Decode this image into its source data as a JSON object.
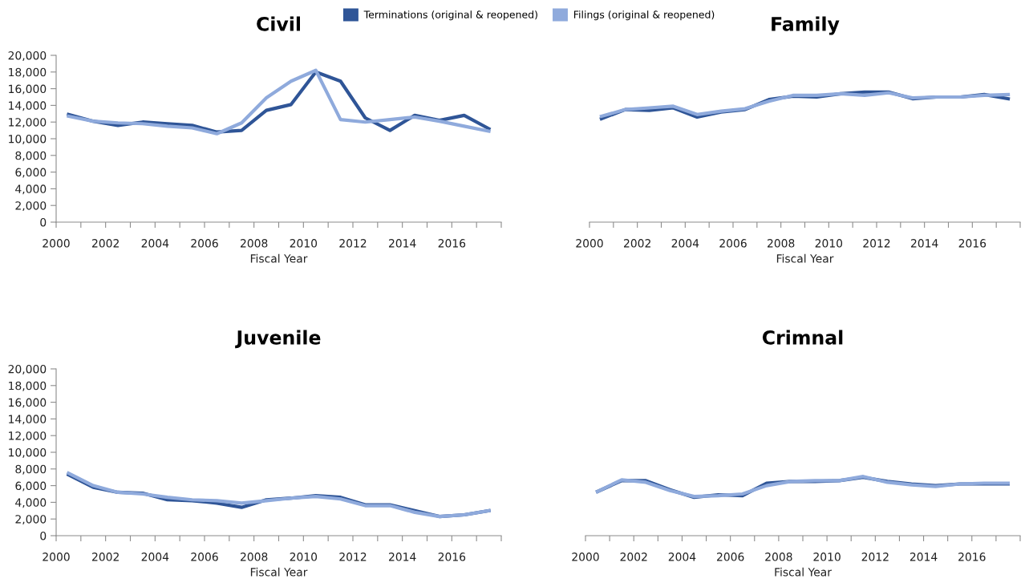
{
  "chart_data": [
    {
      "type": "line",
      "title": "Civil",
      "xlabel": "Fiscal Year",
      "legend": "top",
      "grid": false,
      "x": [
        2000.5,
        2001.5,
        2002.5,
        2003.5,
        2004.5,
        2005.5,
        2006.5,
        2007.5,
        2008.5,
        2009.5,
        2010.5,
        2011.5,
        2012.5,
        2013.5,
        2014.5,
        2015.5,
        2016.5,
        2017.5
      ],
      "xlim": [
        2000,
        2018
      ],
      "xticks": [
        2000,
        {
          "value": 2001,
          "label": null
        },
        2002,
        {
          "value": 2003,
          "label": null
        },
        2004,
        {
          "value": 2005,
          "label": null
        },
        2006,
        {
          "value": 2007,
          "label": null
        },
        2008,
        {
          "value": 2009,
          "label": null
        },
        2010,
        {
          "value": 2011,
          "label": null
        },
        2012,
        {
          "value": 2013,
          "label": null
        },
        2014,
        {
          "value": 2015,
          "label": null
        },
        2016,
        {
          "value": 2017,
          "label": null
        },
        {
          "value": 2018,
          "label": null
        }
      ],
      "ylim": [
        0,
        20000
      ],
      "yticks": [
        0,
        {
          "value": 2000,
          "label": "2,000"
        },
        {
          "value": 4000,
          "label": "4,000"
        },
        {
          "value": 6000,
          "label": "6,000"
        },
        {
          "value": 8000,
          "label": "8,000"
        },
        {
          "value": 10000,
          "label": "10,000"
        },
        {
          "value": 12000,
          "label": "12,000"
        },
        {
          "value": 14000,
          "label": "14,000"
        },
        {
          "value": 16000,
          "label": "16,000"
        },
        {
          "value": 18000,
          "label": "18,000"
        },
        {
          "value": 20000,
          "label": "20,000"
        }
      ],
      "series": [
        {
          "name": "Terminations (original & reopened)",
          "color": "#2f5597",
          "values": [
            12900,
            12100,
            11600,
            12000,
            11800,
            11600,
            10800,
            11000,
            13400,
            14100,
            18000,
            16900,
            12500,
            11000,
            12800,
            12200,
            12800,
            11200
          ]
        },
        {
          "name": "Filings (original & reopened)",
          "color": "#8faadc",
          "values": [
            12700,
            12100,
            11900,
            11800,
            11500,
            11300,
            10600,
            11900,
            14900,
            16900,
            18200,
            12300,
            12000,
            12300,
            12600,
            12100,
            11500,
            10900
          ]
        }
      ]
    },
    {
      "type": "line",
      "title": "Family",
      "xlabel": "Fiscal Year",
      "grid": false,
      "tick_labels": "x",
      "x": [
        2000.5,
        2001.5,
        2002.5,
        2003.5,
        2004.5,
        2005.5,
        2006.5,
        2007.5,
        2008.5,
        2009.5,
        2010.5,
        2011.5,
        2012.5,
        2013.5,
        2014.5,
        2015.5,
        2016.5,
        2017.5
      ],
      "xlim": [
        2000,
        2018
      ],
      "xticks": [
        2000,
        {
          "value": 2001,
          "label": null
        },
        2002,
        {
          "value": 2003,
          "label": null
        },
        2004,
        {
          "value": 2005,
          "label": null
        },
        2006,
        {
          "value": 2007,
          "label": null
        },
        2008,
        {
          "value": 2009,
          "label": null
        },
        2010,
        {
          "value": 2011,
          "label": null
        },
        2012,
        {
          "value": 2013,
          "label": null
        },
        2014,
        {
          "value": 2015,
          "label": null
        },
        2016,
        {
          "value": 2017,
          "label": null
        },
        {
          "value": 2018,
          "label": null
        }
      ],
      "ylim": [
        0,
        20000
      ],
      "series": [
        {
          "color": "#2f5597",
          "values": [
            12400,
            13500,
            13400,
            13700,
            12600,
            13200,
            13500,
            14700,
            15100,
            15000,
            15400,
            15600,
            15600,
            14800,
            15000,
            15000,
            15300,
            14800
          ]
        },
        {
          "color": "#8faadc",
          "values": [
            12700,
            13500,
            13700,
            13900,
            12900,
            13300,
            13600,
            14500,
            15200,
            15200,
            15400,
            15200,
            15500,
            14900,
            15000,
            15000,
            15200,
            15300
          ]
        }
      ]
    },
    {
      "type": "line",
      "title": "Juvenile",
      "xlabel": "Fiscal Year",
      "grid": false,
      "x": [
        2000.5,
        2001.5,
        2002.5,
        2003.5,
        2004.5,
        2005.5,
        2006.5,
        2007.5,
        2008.5,
        2009.5,
        2010.5,
        2011.5,
        2012.5,
        2013.5,
        2014.5,
        2015.5,
        2016.5,
        2017.5
      ],
      "xlim": [
        2000,
        2018
      ],
      "xticks": [
        2000,
        {
          "value": 2001,
          "label": null
        },
        2002,
        {
          "value": 2003,
          "label": null
        },
        2004,
        {
          "value": 2005,
          "label": null
        },
        2006,
        {
          "value": 2007,
          "label": null
        },
        2008,
        {
          "value": 2009,
          "label": null
        },
        2010,
        {
          "value": 2011,
          "label": null
        },
        2012,
        {
          "value": 2013,
          "label": null
        },
        2014,
        {
          "value": 2015,
          "label": null
        },
        2016,
        {
          "value": 2017,
          "label": null
        },
        {
          "value": 2018,
          "label": null
        }
      ],
      "ylim": [
        0,
        20000
      ],
      "yticks": [
        0,
        {
          "value": 2000,
          "label": "2,000"
        },
        {
          "value": 4000,
          "label": "4,000"
        },
        {
          "value": 6000,
          "label": "6,000"
        },
        {
          "value": 8000,
          "label": "8,000"
        },
        {
          "value": 10000,
          "label": "10,000"
        },
        {
          "value": 12000,
          "label": "12,000"
        },
        {
          "value": 14000,
          "label": "14,000"
        },
        {
          "value": 16000,
          "label": "16,000"
        },
        {
          "value": 18000,
          "label": "18,000"
        },
        {
          "value": 20000,
          "label": "20,000"
        }
      ],
      "series": [
        {
          "color": "#2f5597",
          "values": [
            7300,
            5800,
            5200,
            5100,
            4300,
            4200,
            3900,
            3400,
            4300,
            4500,
            4800,
            4600,
            3700,
            3700,
            3000,
            2300,
            2500,
            3000
          ]
        },
        {
          "color": "#8faadc",
          "values": [
            7500,
            6000,
            5200,
            5000,
            4600,
            4300,
            4200,
            3900,
            4200,
            4500,
            4700,
            4400,
            3600,
            3600,
            2800,
            2300,
            2500,
            3000
          ]
        }
      ]
    },
    {
      "type": "line",
      "title": "Crimnal",
      "xlabel": "Fiscal Year",
      "grid": false,
      "tick_labels": "x",
      "x": [
        2000.5,
        2001.5,
        2002.5,
        2003.5,
        2004.5,
        2005.5,
        2006.5,
        2007.5,
        2008.5,
        2009.5,
        2010.5,
        2011.5,
        2012.5,
        2013.5,
        2014.5,
        2015.5,
        2016.5,
        2017.5
      ],
      "xlim": [
        2000,
        2018
      ],
      "xticks": [
        2000,
        {
          "value": 2001,
          "label": null
        },
        2002,
        {
          "value": 2003,
          "label": null
        },
        2004,
        {
          "value": 2005,
          "label": null
        },
        2006,
        {
          "value": 2007,
          "label": null
        },
        2008,
        {
          "value": 2009,
          "label": null
        },
        2010,
        {
          "value": 2011,
          "label": null
        },
        2012,
        {
          "value": 2013,
          "label": null
        },
        2014,
        {
          "value": 2015,
          "label": null
        },
        2016,
        {
          "value": 2017,
          "label": null
        },
        {
          "value": 2018,
          "label": null
        }
      ],
      "ylim": [
        0,
        20000
      ],
      "series": [
        {
          "color": "#2f5597",
          "values": [
            5300,
            6600,
            6600,
            5500,
            4600,
            4900,
            4800,
            6300,
            6500,
            6500,
            6600,
            7000,
            6500,
            6200,
            6000,
            6200,
            6200,
            6200
          ]
        },
        {
          "color": "#8faadc",
          "values": [
            5300,
            6700,
            6400,
            5400,
            4700,
            4800,
            5000,
            6000,
            6500,
            6600,
            6600,
            7100,
            6400,
            6100,
            5900,
            6200,
            6300,
            6300
          ]
        }
      ]
    }
  ]
}
